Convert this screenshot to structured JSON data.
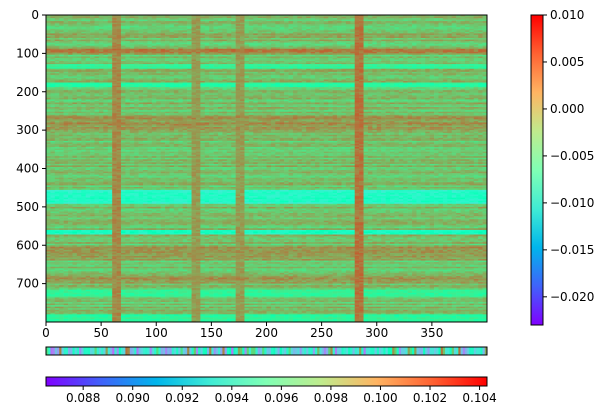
{
  "chart_data": [
    {
      "type": "heatmap",
      "title": "",
      "xlabel": "",
      "ylabel": "",
      "xlim": [
        0,
        400
      ],
      "ylim": [
        800,
        0
      ],
      "rows": 800,
      "cols": 400,
      "xticks": [
        0,
        50,
        100,
        150,
        200,
        250,
        300,
        350
      ],
      "yticks": [
        0,
        100,
        200,
        300,
        400,
        500,
        600,
        700
      ],
      "colormap": "rainbow",
      "value_range": [
        -0.023,
        0.01
      ],
      "dominant_value": 0.001,
      "row_bands": [
        {
          "rows": [
            85,
            100
          ],
          "value": 0.004
        },
        {
          "rows": [
            125,
            140
          ],
          "value": -0.003
        },
        {
          "rows": [
            175,
            185
          ],
          "value": -0.004
        },
        {
          "rows": [
            260,
            300
          ],
          "value": 0.003
        },
        {
          "rows": [
            455,
            490
          ],
          "value": -0.009
        },
        {
          "rows": [
            560,
            570
          ],
          "value": -0.008
        },
        {
          "rows": [
            600,
            640
          ],
          "value": 0.003
        },
        {
          "rows": [
            680,
            700
          ],
          "value": 0.003
        },
        {
          "rows": [
            715,
            735
          ],
          "value": -0.003
        },
        {
          "rows": [
            780,
            800
          ],
          "value": -0.004
        }
      ],
      "column_lines": [
        {
          "col": 62,
          "value": 0.005
        },
        {
          "col": 133,
          "value": 0.004
        },
        {
          "col": 175,
          "value": 0.004
        },
        {
          "col": 282,
          "value": 0.006
        }
      ]
    },
    {
      "type": "heatmap",
      "orientation": "horizontal-strip",
      "cols": 400,
      "colormap": "rainbow",
      "value_range": [
        0.0865,
        0.1043
      ],
      "typical_value": 0.093
    }
  ],
  "colorbars": [
    {
      "orientation": "vertical",
      "colormap": "rainbow",
      "range": [
        -0.023,
        0.01
      ],
      "tick_values": [
        0.01,
        0.005,
        0.0,
        -0.005,
        -0.01,
        -0.015,
        -0.02
      ],
      "tick_labels": [
        "0.010",
        "0.005",
        "0.000",
        "−0.005",
        "−0.010",
        "−0.015",
        "−0.020"
      ]
    },
    {
      "orientation": "horizontal",
      "colormap": "rainbow",
      "range": [
        0.0865,
        0.1043
      ],
      "tick_values": [
        0.088,
        0.09,
        0.092,
        0.094,
        0.096,
        0.098,
        0.1,
        0.102,
        0.104
      ],
      "tick_labels": [
        "0.088",
        "0.090",
        "0.092",
        "0.094",
        "0.096",
        "0.098",
        "0.100",
        "0.102",
        "0.104"
      ]
    }
  ]
}
